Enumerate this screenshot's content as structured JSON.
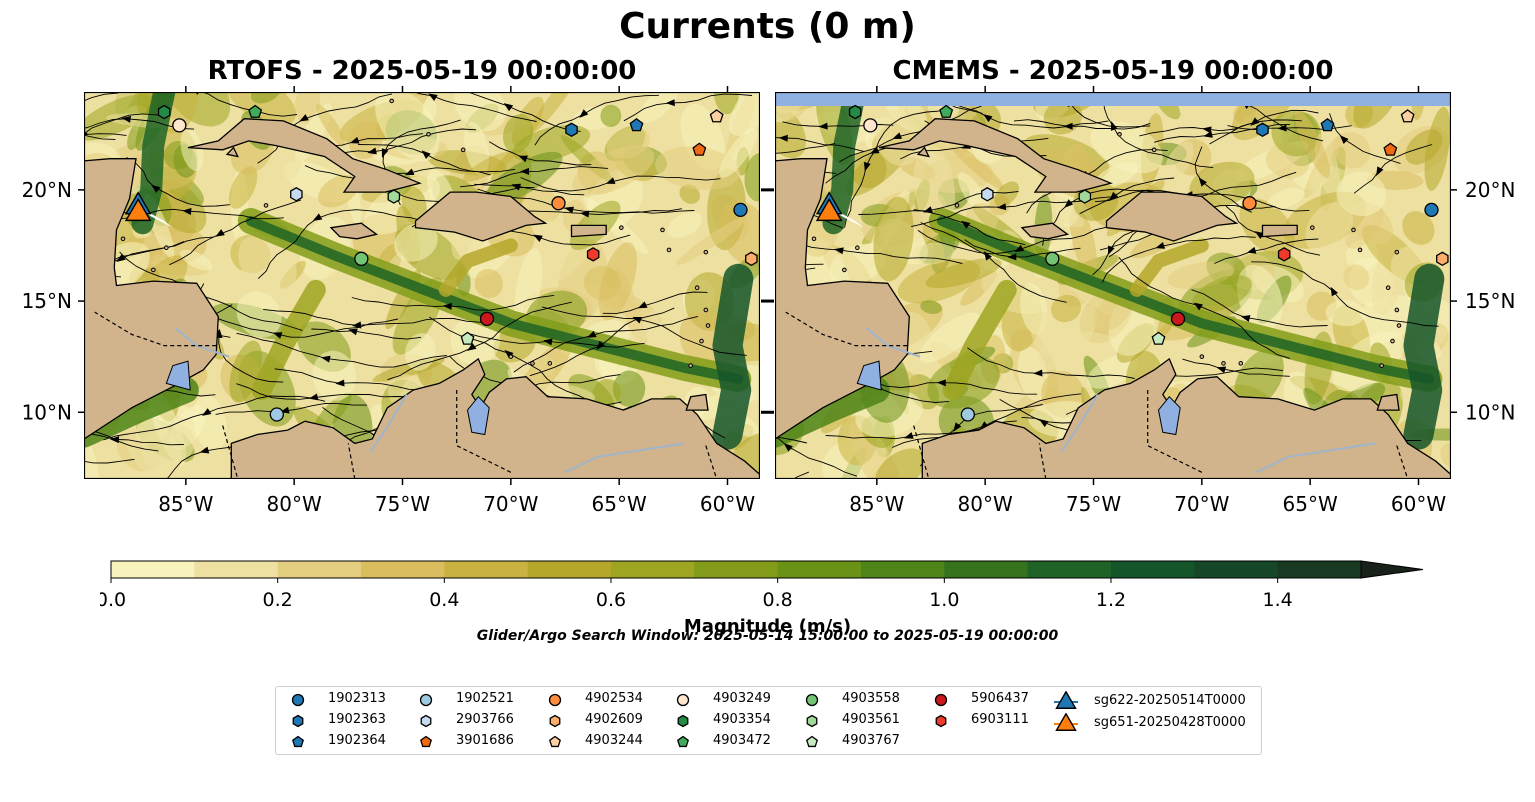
{
  "figure": {
    "title": "Currents (0 m)",
    "search_window": "Glider/Argo Search Window: 2025-05-14 15:00:00 to 2025-05-19 00:00:00"
  },
  "panels": [
    {
      "id": "rtofs",
      "title": "RTOFS - 2025-05-19 00:00:00"
    },
    {
      "id": "cmems",
      "title": "CMEMS - 2025-05-19 00:00:00"
    }
  ],
  "axes": {
    "x_ticks": [
      "85°W",
      "80°W",
      "75°W",
      "70°W",
      "65°W",
      "60°W"
    ],
    "x_values": [
      -85,
      -80,
      -75,
      -70,
      -65,
      -60
    ],
    "y_ticks": [
      "10°N",
      "15°N",
      "20°N"
    ],
    "y_values": [
      10,
      15,
      20
    ],
    "lon_range": [
      -89.7,
      -58.5
    ],
    "lat_range": [
      7,
      24.4
    ]
  },
  "colorbar": {
    "label": "Magnitude (m/s)",
    "ticks": [
      "0.0",
      "0.2",
      "0.4",
      "0.6",
      "0.8",
      "1.0",
      "1.2",
      "1.4"
    ],
    "tick_values": [
      0,
      0.2,
      0.4,
      0.6,
      0.8,
      1.0,
      1.2,
      1.4
    ],
    "range": [
      0,
      1.5
    ],
    "extend": "max",
    "colors": [
      "#f8f2bd",
      "#ede0a0",
      "#e3ce80",
      "#d9bd5e",
      "#c9b240",
      "#b4a72c",
      "#9da522",
      "#829c19",
      "#6a9216",
      "#4e8418",
      "#35741d",
      "#1f6426",
      "#14552a",
      "#154728",
      "#183a22",
      "#192d1b",
      "#18221a"
    ]
  },
  "colors": {
    "land": "#d2b48c",
    "water_fill": "#8fb0e0",
    "glider_sg622": "#1f77b4",
    "glider_sg651": "#ff7f0e"
  },
  "chart_data": [
    {
      "type": "scatter",
      "title": "RTOFS - 2025-05-19 00:00:00",
      "x_label": "",
      "y_label": "",
      "x_ticks": [
        "85°W",
        "80°W",
        "75°W",
        "70°W",
        "65°W",
        "60°W"
      ],
      "y_ticks": [
        "10°N",
        "15°N",
        "20°N"
      ],
      "series": [
        {
          "name": "1902313",
          "marker": "circle",
          "color": "#1f77b4",
          "x": [
            -59.4
          ],
          "y": [
            19.1
          ]
        },
        {
          "name": "1902363",
          "marker": "hexagon",
          "color": "#1f77b4",
          "x": [
            -67.2
          ],
          "y": [
            22.7
          ]
        },
        {
          "name": "1902364",
          "marker": "pentagon",
          "color": "#1f77b4",
          "x": [
            -64.2
          ],
          "y": [
            22.9
          ]
        },
        {
          "name": "1902521",
          "marker": "circle",
          "color": "#9ecae1",
          "x": [
            -80.8
          ],
          "y": [
            9.9
          ]
        },
        {
          "name": "2903766",
          "marker": "hexagon",
          "color": "#c6dbef",
          "x": [
            -79.9
          ],
          "y": [
            19.8
          ]
        },
        {
          "name": "3901686",
          "marker": "pentagon",
          "color": "#f16913",
          "x": [
            -61.3
          ],
          "y": [
            21.8
          ]
        },
        {
          "name": "4902534",
          "marker": "circle",
          "color": "#fd8d3c",
          "x": [
            -67.8
          ],
          "y": [
            19.4
          ]
        },
        {
          "name": "4902609",
          "marker": "hexagon",
          "color": "#fdae6b",
          "x": [
            -58.9
          ],
          "y": [
            16.9
          ]
        },
        {
          "name": "4903244",
          "marker": "pentagon",
          "color": "#fdd0a2",
          "x": [
            -60.5
          ],
          "y": [
            23.3
          ]
        },
        {
          "name": "4903249",
          "marker": "circle",
          "color": "#fee6ce",
          "x": [
            -85.3
          ],
          "y": [
            22.9
          ]
        },
        {
          "name": "4903354",
          "marker": "hexagon",
          "color": "#238b45",
          "x": [
            -86.0
          ],
          "y": [
            23.5
          ]
        },
        {
          "name": "4903472",
          "marker": "pentagon",
          "color": "#41ab5d",
          "x": [
            -81.8
          ],
          "y": [
            23.5
          ]
        },
        {
          "name": "4903558",
          "marker": "circle",
          "color": "#74c476",
          "x": [
            -76.9
          ],
          "y": [
            16.9
          ]
        },
        {
          "name": "4903561",
          "marker": "hexagon",
          "color": "#a1d99b",
          "x": [
            -75.4
          ],
          "y": [
            19.7
          ]
        },
        {
          "name": "4903767",
          "marker": "pentagon",
          "color": "#c7e9c0",
          "x": [
            -72.0
          ],
          "y": [
            13.3
          ]
        },
        {
          "name": "5906437",
          "marker": "circle",
          "color": "#cb181d",
          "x": [
            -71.1
          ],
          "y": [
            14.2
          ]
        },
        {
          "name": "6903111",
          "marker": "hexagon",
          "color": "#ef3b2c",
          "x": [
            -66.2
          ],
          "y": [
            17.1
          ]
        },
        {
          "name": "sg622-20250514T0000",
          "marker": "triangle",
          "color": "#1f77b4",
          "x": [
            -87.2
          ],
          "y": [
            19.4
          ]
        },
        {
          "name": "sg651-20250428T0000",
          "marker": "triangle",
          "color": "#ff7f0e",
          "x": [
            -87.2
          ],
          "y": [
            19.1
          ]
        }
      ]
    },
    {
      "type": "scatter",
      "title": "CMEMS - 2025-05-19 00:00:00",
      "x_label": "",
      "y_label": "",
      "x_ticks": [
        "85°W",
        "80°W",
        "75°W",
        "70°W",
        "65°W",
        "60°W"
      ],
      "y_ticks": [
        "10°N",
        "15°N",
        "20°N"
      ],
      "series": [
        {
          "name": "1902313",
          "marker": "circle",
          "color": "#1f77b4",
          "x": [
            -59.4
          ],
          "y": [
            19.1
          ]
        },
        {
          "name": "1902363",
          "marker": "hexagon",
          "color": "#1f77b4",
          "x": [
            -67.2
          ],
          "y": [
            22.7
          ]
        },
        {
          "name": "1902364",
          "marker": "pentagon",
          "color": "#1f77b4",
          "x": [
            -64.2
          ],
          "y": [
            22.9
          ]
        },
        {
          "name": "1902521",
          "marker": "circle",
          "color": "#9ecae1",
          "x": [
            -80.8
          ],
          "y": [
            9.9
          ]
        },
        {
          "name": "2903766",
          "marker": "hexagon",
          "color": "#c6dbef",
          "x": [
            -79.9
          ],
          "y": [
            19.8
          ]
        },
        {
          "name": "3901686",
          "marker": "pentagon",
          "color": "#f16913",
          "x": [
            -61.3
          ],
          "y": [
            21.8
          ]
        },
        {
          "name": "4902534",
          "marker": "circle",
          "color": "#fd8d3c",
          "x": [
            -67.8
          ],
          "y": [
            19.4
          ]
        },
        {
          "name": "4902609",
          "marker": "hexagon",
          "color": "#fdae6b",
          "x": [
            -58.9
          ],
          "y": [
            16.9
          ]
        },
        {
          "name": "4903244",
          "marker": "pentagon",
          "color": "#fdd0a2",
          "x": [
            -60.5
          ],
          "y": [
            23.3
          ]
        },
        {
          "name": "4903249",
          "marker": "circle",
          "color": "#fee6ce",
          "x": [
            -85.3
          ],
          "y": [
            22.9
          ]
        },
        {
          "name": "4903354",
          "marker": "hexagon",
          "color": "#238b45",
          "x": [
            -86.0
          ],
          "y": [
            23.5
          ]
        },
        {
          "name": "4903472",
          "marker": "pentagon",
          "color": "#41ab5d",
          "x": [
            -81.8
          ],
          "y": [
            23.5
          ]
        },
        {
          "name": "4903558",
          "marker": "circle",
          "color": "#74c476",
          "x": [
            -76.9
          ],
          "y": [
            16.9
          ]
        },
        {
          "name": "4903561",
          "marker": "hexagon",
          "color": "#a1d99b",
          "x": [
            -75.4
          ],
          "y": [
            19.7
          ]
        },
        {
          "name": "4903767",
          "marker": "pentagon",
          "color": "#c7e9c0",
          "x": [
            -72.0
          ],
          "y": [
            13.3
          ]
        },
        {
          "name": "5906437",
          "marker": "circle",
          "color": "#cb181d",
          "x": [
            -71.1
          ],
          "y": [
            14.2
          ]
        },
        {
          "name": "6903111",
          "marker": "hexagon",
          "color": "#ef3b2c",
          "x": [
            -66.2
          ],
          "y": [
            17.1
          ]
        },
        {
          "name": "sg622-20250514T0000",
          "marker": "triangle",
          "color": "#1f77b4",
          "x": [
            -87.2
          ],
          "y": [
            19.4
          ]
        },
        {
          "name": "sg651-20250428T0000",
          "marker": "triangle",
          "color": "#ff7f0e",
          "x": [
            -87.2
          ],
          "y": [
            19.1
          ]
        }
      ]
    }
  ]
}
